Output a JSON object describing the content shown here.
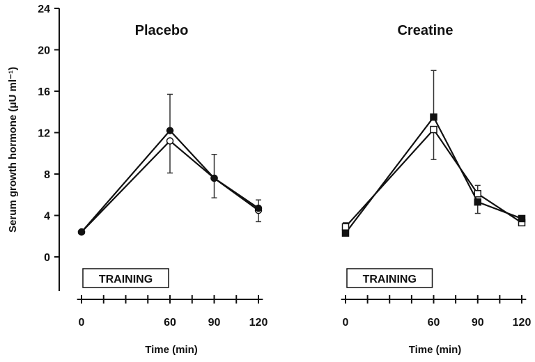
{
  "chart_data": [
    {
      "type": "line",
      "title": "Placebo",
      "xlabel": "Time (min)",
      "ylabel": "Serum growth hormone (μU ml⁻¹)",
      "ylim": [
        0,
        24
      ],
      "yticks": [
        "0",
        "4",
        "8",
        "12",
        "16",
        "20",
        "24"
      ],
      "xticks": [
        "0",
        "60",
        "90",
        "120"
      ],
      "x": [
        0,
        60,
        90,
        120
      ],
      "annotation": "TRAINING",
      "grid": false,
      "series": [
        {
          "marker": "filled-circle",
          "values": [
            2.4,
            12.2,
            7.6,
            4.7
          ],
          "error_upper": [
            null,
            15.7,
            9.9,
            5.5
          ]
        },
        {
          "marker": "open-circle",
          "values": [
            2.4,
            11.2,
            7.6,
            4.5
          ],
          "error_lower": [
            null,
            8.1,
            5.7,
            3.4
          ]
        }
      ]
    },
    {
      "type": "line",
      "title": "Creatine",
      "xlabel": "Time (min)",
      "ylim": [
        0,
        24
      ],
      "xticks": [
        "0",
        "60",
        "90",
        "120"
      ],
      "x": [
        0,
        60,
        90,
        120
      ],
      "annotation": "TRAINING",
      "grid": false,
      "series": [
        {
          "marker": "filled-square",
          "values": [
            2.3,
            13.5,
            5.3,
            3.7
          ],
          "error_upper": [
            null,
            18.0,
            null,
            null
          ],
          "error_lower": [
            null,
            null,
            4.2,
            null
          ]
        },
        {
          "marker": "open-square",
          "values": [
            2.9,
            12.3,
            6.1,
            3.3
          ],
          "error_upper": [
            3.3,
            null,
            6.9,
            null
          ],
          "error_lower": [
            null,
            9.4,
            null,
            null
          ]
        }
      ]
    }
  ],
  "colors": {
    "ink": "#111111",
    "background": "#ffffff"
  }
}
